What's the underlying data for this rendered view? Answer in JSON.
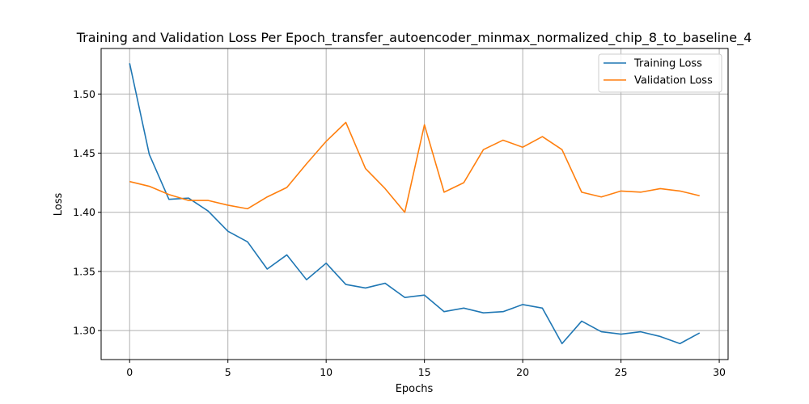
{
  "chart_data": {
    "type": "line",
    "title": "Training and Validation Loss Per Epoch_transfer_autoencoder_minmax_normalized_chip_8_to_baseline_4",
    "xlabel": "Epochs",
    "ylabel": "Loss",
    "xlim": [
      -1.45,
      30.45
    ],
    "ylim": [
      1.2755,
      1.5385
    ],
    "xticks": [
      0,
      5,
      10,
      15,
      20,
      25,
      30
    ],
    "yticks": [
      1.3,
      1.35,
      1.4,
      1.45,
      1.5
    ],
    "xtick_labels": [
      "0",
      "5",
      "10",
      "15",
      "20",
      "25",
      "30"
    ],
    "ytick_labels": [
      "1.30",
      "1.35",
      "1.40",
      "1.45",
      "1.50"
    ],
    "grid": true,
    "legend_position": "top-right",
    "x": [
      0,
      1,
      2,
      3,
      4,
      5,
      6,
      7,
      8,
      9,
      10,
      11,
      12,
      13,
      14,
      15,
      16,
      17,
      18,
      19,
      20,
      21,
      22,
      23,
      24,
      25,
      26,
      27,
      28,
      29
    ],
    "series": [
      {
        "name": "Training Loss",
        "color": "#1f77b4",
        "values": [
          1.526,
          1.449,
          1.411,
          1.412,
          1.401,
          1.384,
          1.375,
          1.352,
          1.364,
          1.343,
          1.357,
          1.339,
          1.336,
          1.34,
          1.328,
          1.33,
          1.316,
          1.319,
          1.315,
          1.316,
          1.322,
          1.319,
          1.289,
          1.308,
          1.299,
          1.297,
          1.299,
          1.295,
          1.289,
          1.298
        ]
      },
      {
        "name": "Validation Loss",
        "color": "#ff7f0e",
        "values": [
          1.426,
          1.422,
          1.415,
          1.41,
          1.41,
          1.406,
          1.403,
          1.413,
          1.421,
          1.441,
          1.46,
          1.476,
          1.437,
          1.42,
          1.4,
          1.474,
          1.417,
          1.425,
          1.453,
          1.461,
          1.455,
          1.464,
          1.453,
          1.417,
          1.413,
          1.418,
          1.417,
          1.42,
          1.418,
          1.414
        ]
      }
    ]
  }
}
